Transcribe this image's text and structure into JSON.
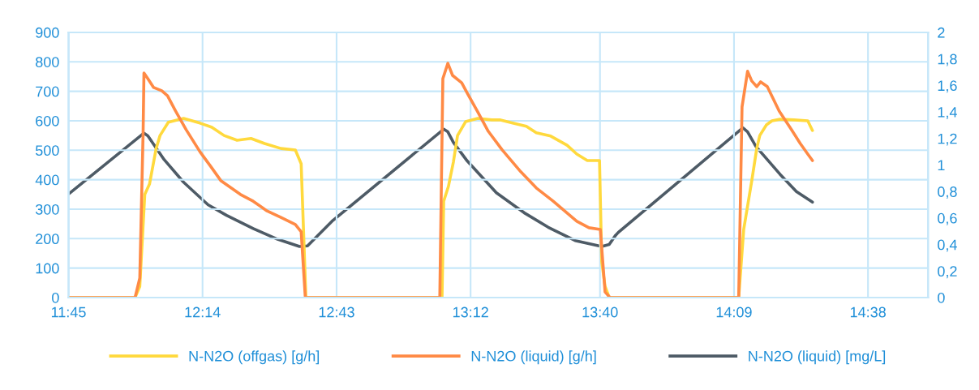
{
  "chart_data": {
    "type": "line",
    "legend": "bottom",
    "grid": true,
    "marker": "none",
    "line_style": "solid",
    "xlim": [
      11.75,
      14.85
    ],
    "xticks": [
      {
        "value": 11.75,
        "label": "11:45"
      },
      {
        "value": 12.2333,
        "label": "12:14"
      },
      {
        "value": 12.7167,
        "label": "12:43"
      },
      {
        "value": 13.2,
        "label": "13:12"
      },
      {
        "value": 13.6667,
        "label": "13:40"
      },
      {
        "value": 14.15,
        "label": "14:09"
      },
      {
        "value": 14.6333,
        "label": "14:38"
      }
    ],
    "ylim": [
      0,
      900
    ],
    "yticks": [
      0,
      100,
      200,
      300,
      400,
      500,
      600,
      700,
      800,
      900
    ],
    "y2lim": [
      0,
      2
    ],
    "y2ticks": [
      0,
      {
        "value": 0.2,
        "label": "0,2"
      },
      {
        "value": 0.4,
        "label": "0,4"
      },
      {
        "value": 0.6,
        "label": "0,6"
      },
      {
        "value": 0.8,
        "label": "0,8"
      },
      1,
      {
        "value": 1.2,
        "label": "1,2"
      },
      {
        "value": 1.4,
        "label": "1,4"
      },
      {
        "value": 1.6,
        "label": "1,6"
      },
      {
        "value": 1.8,
        "label": "1,8"
      },
      2
    ],
    "series": [
      {
        "name": "N-N2O (offgas) [g/h]",
        "color": "#ffd93d",
        "x": [
          11.75,
          11.99,
          12.007,
          12.025,
          12.042,
          12.066,
          12.08,
          12.11,
          12.165,
          12.224,
          12.267,
          12.311,
          12.358,
          12.408,
          12.457,
          12.516,
          12.568,
          12.589,
          12.606,
          13.089,
          13.097,
          13.103,
          13.12,
          13.138,
          13.153,
          13.182,
          13.226,
          13.276,
          13.305,
          13.352,
          13.401,
          13.437,
          13.489,
          13.548,
          13.583,
          13.621,
          13.644,
          13.665,
          13.673,
          13.685,
          13.7,
          14.167,
          14.185,
          14.214,
          14.232,
          14.243,
          14.267,
          14.287,
          14.316,
          14.366,
          14.416,
          14.433
        ],
        "values": [
          0,
          0,
          38,
          350,
          385,
          506,
          550,
          595,
          608,
          592,
          578,
          550,
          534,
          540,
          523,
          506,
          501,
          454,
          0,
          0,
          0,
          327,
          377,
          460,
          550,
          597,
          608,
          603,
          603,
          592,
          581,
          559,
          548,
          517,
          487,
          465,
          465,
          465,
          121,
          38,
          0,
          0,
          231,
          396,
          506,
          550,
          586,
          600,
          605,
          603,
          600,
          567
        ]
      },
      {
        "name": "N-N2O (liquid) [g/h]",
        "color": "#ff8a45",
        "x": [
          11.75,
          11.99,
          12.007,
          12.019,
          12.022,
          12.036,
          12.057,
          12.086,
          12.107,
          12.136,
          12.174,
          12.224,
          12.262,
          12.3,
          12.37,
          12.416,
          12.466,
          12.516,
          12.568,
          12.589,
          12.604,
          13.089,
          13.1,
          13.118,
          13.135,
          13.168,
          13.188,
          13.226,
          13.264,
          13.314,
          13.381,
          13.437,
          13.498,
          13.583,
          13.627,
          13.668,
          13.685,
          13.703,
          14.167,
          14.179,
          14.199,
          14.214,
          14.232,
          14.246,
          14.27,
          14.313,
          14.357,
          14.389,
          14.416,
          14.433
        ],
        "values": [
          0,
          0,
          66,
          561,
          762,
          743,
          713,
          702,
          685,
          633,
          570,
          495,
          446,
          396,
          350,
          327,
          294,
          272,
          248,
          223,
          0,
          0,
          743,
          795,
          754,
          729,
          694,
          630,
          564,
          501,
          427,
          372,
          327,
          259,
          237,
          231,
          19,
          0,
          0,
          647,
          768,
          735,
          716,
          732,
          716,
          633,
          570,
          523,
          487,
          465
        ]
      },
      {
        "name": "N-N2O (liquid) [mg/L]",
        "color": "#4e5b66",
        "axis": "y2",
        "x": [
          11.75,
          12.022,
          12.036,
          12.095,
          12.165,
          12.253,
          12.32,
          12.416,
          12.504,
          12.583,
          12.612,
          12.7,
          13.103,
          13.118,
          13.138,
          13.188,
          13.293,
          13.393,
          13.48,
          13.577,
          13.673,
          13.7,
          13.723,
          13.732,
          14.182,
          14.199,
          14.229,
          14.316,
          14.375,
          14.433
        ],
        "values": [
          0.78,
          1.24,
          1.22,
          1.04,
          0.87,
          0.7,
          0.62,
          0.52,
          0.44,
          0.385,
          0.39,
          0.575,
          1.27,
          1.25,
          1.17,
          1.03,
          0.79,
          0.64,
          0.53,
          0.43,
          0.385,
          0.4,
          0.47,
          0.49,
          1.28,
          1.25,
          1.14,
          0.93,
          0.8,
          0.72
        ]
      }
    ]
  }
}
